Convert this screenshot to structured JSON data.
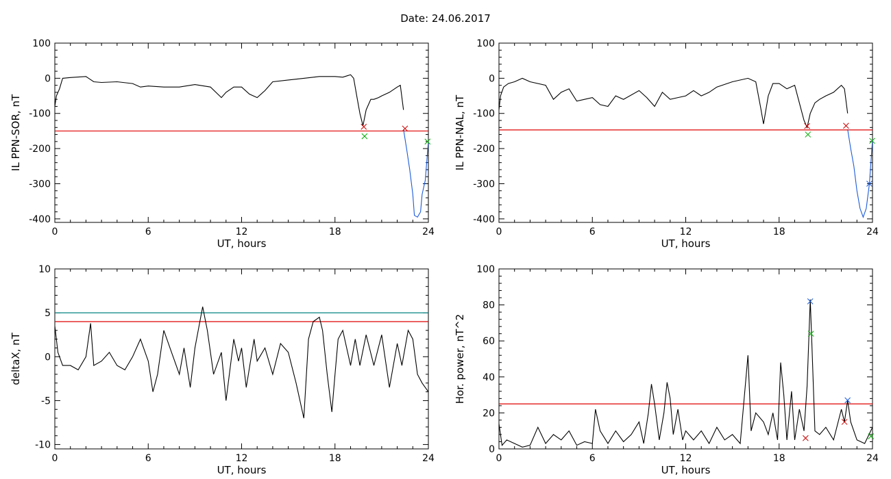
{
  "figure": {
    "title": "Date:  24.06.2017"
  },
  "chart_data": [
    {
      "type": "line",
      "xlabel": "UT, hours",
      "ylabel": "IL PPN-SOR, nT",
      "xlim": [
        0,
        24
      ],
      "ylim": [
        -410,
        100
      ],
      "xticks": [
        0,
        6,
        12,
        18,
        24
      ],
      "yticks": [
        -400,
        -300,
        -200,
        -100,
        0,
        100
      ],
      "threshold_lines": [
        {
          "y": -150,
          "color": "#e00000"
        }
      ],
      "series": [
        {
          "color": "#000000",
          "x": [
            0,
            0.1,
            0.3,
            0.5,
            1,
            2,
            2.5,
            3,
            4,
            5,
            5.5,
            6,
            7,
            8,
            9,
            10,
            10.7,
            11,
            11.5,
            12,
            12.5,
            13,
            13.5,
            14,
            15,
            16,
            17,
            18,
            18.5,
            19,
            19.2,
            19.4,
            19.6,
            19.8,
            20,
            20.3,
            20.5,
            20.8,
            21,
            21.5,
            22,
            22.2,
            22.4
          ],
          "y": [
            -80,
            -50,
            -30,
            0,
            2,
            5,
            -10,
            -12,
            -10,
            -15,
            -25,
            -22,
            -25,
            -25,
            -18,
            -25,
            -55,
            -40,
            -25,
            -25,
            -45,
            -55,
            -35,
            -10,
            -5,
            0,
            5,
            5,
            3,
            10,
            0,
            -50,
            -100,
            -135,
            -90,
            -60,
            -60,
            -55,
            -50,
            -40,
            -25,
            -20,
            -90
          ]
        },
        {
          "color": "#1a5ad9",
          "x": [
            22.4,
            22.6,
            22.8,
            23,
            23.1,
            23.3,
            23.5,
            23.6,
            23.8,
            24
          ],
          "y": [
            -145,
            -200,
            -260,
            -330,
            -390,
            -395,
            -380,
            -330,
            -290,
            -180
          ]
        }
      ],
      "markers": [
        {
          "x": 19.85,
          "y": -138,
          "color": "#cc0000"
        },
        {
          "x": 19.9,
          "y": -165,
          "color": "#00aa00"
        },
        {
          "x": 22.5,
          "y": -143,
          "color": "#cc0000"
        },
        {
          "x": 23.95,
          "y": -180,
          "color": "#00aa00"
        }
      ]
    },
    {
      "type": "line",
      "xlabel": "UT, hours",
      "ylabel": "IL PPN-NAL, nT",
      "xlim": [
        0,
        24
      ],
      "ylim": [
        -410,
        100
      ],
      "xticks": [
        0,
        6,
        12,
        18,
        24
      ],
      "yticks": [
        -400,
        -300,
        -200,
        -100,
        0,
        100
      ],
      "threshold_lines": [
        {
          "y": -147,
          "color": "#e00000"
        }
      ],
      "series": [
        {
          "color": "#000000",
          "x": [
            0,
            0.1,
            0.3,
            0.6,
            1,
            1.5,
            2,
            3,
            3.5,
            4,
            4.5,
            5,
            5.5,
            6,
            6.5,
            7,
            7.5,
            8,
            9,
            9.5,
            10,
            10.5,
            11,
            11.5,
            12,
            12.5,
            13,
            13.5,
            14,
            15,
            16,
            16.5,
            16.8,
            17,
            17.3,
            17.6,
            18,
            18.5,
            19,
            19.3,
            19.6,
            19.8,
            20,
            20.3,
            20.6,
            21,
            21.5,
            22,
            22.2,
            22.4
          ],
          "y": [
            -90,
            -50,
            -25,
            -15,
            -10,
            0,
            -10,
            -20,
            -60,
            -40,
            -30,
            -65,
            -60,
            -55,
            -75,
            -80,
            -50,
            -60,
            -35,
            -55,
            -80,
            -40,
            -60,
            -55,
            -50,
            -35,
            -50,
            -40,
            -25,
            -10,
            0,
            -10,
            -80,
            -130,
            -50,
            -15,
            -15,
            -30,
            -20,
            -70,
            -120,
            -140,
            -100,
            -70,
            -60,
            -50,
            -40,
            -20,
            -30,
            -100
          ]
        },
        {
          "color": "#1a5ad9",
          "x": [
            22.4,
            22.6,
            22.8,
            23,
            23.2,
            23.4,
            23.6,
            23.8,
            24
          ],
          "y": [
            -145,
            -200,
            -250,
            -320,
            -370,
            -395,
            -370,
            -300,
            -175
          ]
        }
      ],
      "markers": [
        {
          "x": 19.8,
          "y": -136,
          "color": "#cc0000"
        },
        {
          "x": 19.85,
          "y": -160,
          "color": "#00aa00"
        },
        {
          "x": 22.3,
          "y": -135,
          "color": "#cc0000"
        },
        {
          "x": 23.8,
          "y": -300,
          "color": "#1a5ad9"
        },
        {
          "x": 23.98,
          "y": -178,
          "color": "#00aa00"
        }
      ]
    },
    {
      "type": "line",
      "xlabel": "UT, hours",
      "ylabel": "deltaX, nT",
      "xlim": [
        0,
        24
      ],
      "ylim": [
        -10.5,
        10
      ],
      "xticks": [
        0,
        6,
        12,
        18,
        24
      ],
      "yticks": [
        -10,
        -5,
        0,
        5,
        10
      ],
      "threshold_lines": [
        {
          "y": 5,
          "color": "#008080"
        },
        {
          "y": 4,
          "color": "#e00000"
        }
      ],
      "series": [
        {
          "color": "#000000",
          "x": [
            0,
            0.2,
            0.5,
            1,
            1.5,
            2,
            2.3,
            2.5,
            3,
            3.5,
            4,
            4.5,
            5,
            5.5,
            6,
            6.3,
            6.6,
            7,
            7.5,
            8,
            8.3,
            8.7,
            9,
            9.5,
            9.8,
            10.2,
            10.7,
            11,
            11.5,
            11.8,
            12,
            12.3,
            12.8,
            13,
            13.5,
            14,
            14.5,
            15,
            15.5,
            16,
            16.3,
            16.6,
            17,
            17.2,
            17.5,
            17.8,
            18,
            18.2,
            18.5,
            19,
            19.3,
            19.6,
            20,
            20.5,
            21,
            21.5,
            22,
            22.3,
            22.7,
            23,
            23.3,
            23.6,
            24
          ],
          "y": [
            3.5,
            0.5,
            -1,
            -1,
            -1.5,
            0,
            3.8,
            -1,
            -0.5,
            0.5,
            -1,
            -1.5,
            0,
            2,
            -0.5,
            -4,
            -2,
            3,
            0.5,
            -2,
            1,
            -3.5,
            1,
            5.7,
            3,
            -2,
            0.5,
            -5,
            2,
            -0.5,
            1,
            -3.5,
            2,
            -0.5,
            1,
            -2,
            1.5,
            0.5,
            -3,
            -7,
            2,
            4,
            4.5,
            3,
            -2,
            -6.3,
            -2,
            2,
            3,
            -1,
            2,
            -1,
            2.5,
            -1,
            2.5,
            -3.5,
            1.5,
            -1,
            3,
            2,
            -2,
            -3,
            -4
          ]
        }
      ],
      "markers": []
    },
    {
      "type": "line",
      "xlabel": "UT, hours",
      "ylabel": "Hor. power, nT^2",
      "xlim": [
        0,
        24
      ],
      "ylim": [
        0,
        100
      ],
      "xticks": [
        0,
        6,
        12,
        18,
        24
      ],
      "yticks": [
        0,
        20,
        40,
        60,
        80,
        100
      ],
      "threshold_lines": [
        {
          "y": 25,
          "color": "#e00000"
        }
      ],
      "series": [
        {
          "color": "#000000",
          "x": [
            0,
            0.2,
            0.5,
            1,
            1.5,
            2,
            2.5,
            3,
            3.5,
            4,
            4.5,
            5,
            5.5,
            6,
            6.2,
            6.5,
            7,
            7.5,
            8,
            8.5,
            9,
            9.3,
            9.6,
            9.8,
            10,
            10.3,
            10.6,
            10.8,
            11,
            11.2,
            11.5,
            11.8,
            12,
            12.5,
            13,
            13.5,
            14,
            14.5,
            15,
            15.5,
            16,
            16.2,
            16.5,
            17,
            17.3,
            17.6,
            17.9,
            18.1,
            18.3,
            18.5,
            18.8,
            19,
            19.3,
            19.6,
            19.8,
            20,
            20.1,
            20.3,
            20.6,
            21,
            21.5,
            22,
            22.2,
            22.4,
            22.6,
            23,
            23.5,
            24
          ],
          "y": [
            14,
            2,
            5,
            3,
            1,
            2,
            12,
            3,
            8,
            5,
            10,
            2,
            4,
            3,
            22,
            10,
            3,
            10,
            4,
            8,
            15,
            3,
            20,
            36,
            25,
            5,
            20,
            37,
            28,
            8,
            22,
            5,
            10,
            5,
            10,
            3,
            12,
            5,
            8,
            3,
            52,
            10,
            20,
            15,
            8,
            20,
            5,
            48,
            30,
            5,
            32,
            5,
            22,
            10,
            35,
            83,
            60,
            10,
            8,
            12,
            5,
            22,
            15,
            27,
            15,
            5,
            3,
            12
          ]
        }
      ],
      "markers": [
        {
          "x": 20.0,
          "y": 82,
          "color": "#1a5ad9"
        },
        {
          "x": 20.05,
          "y": 64,
          "color": "#00aa00"
        },
        {
          "x": 19.7,
          "y": 6,
          "color": "#cc0000"
        },
        {
          "x": 22.4,
          "y": 27,
          "color": "#1a5ad9"
        },
        {
          "x": 22.2,
          "y": 15,
          "color": "#cc0000"
        },
        {
          "x": 23.9,
          "y": 7,
          "color": "#00aa00"
        }
      ]
    }
  ]
}
